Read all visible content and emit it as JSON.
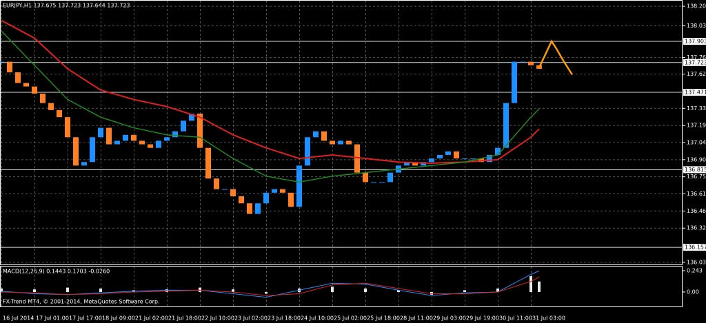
{
  "chart_data": [
    {
      "type": "candlestick",
      "title": "EURJPY,H1  137.675 137.723 137.644 137.723",
      "categories": [
        "16 Jul 2014",
        null,
        null,
        null,
        "17 Jul 01:00",
        null,
        null,
        null,
        "17 Jul 17:00",
        null,
        null,
        null,
        "18 Jul 09:00",
        null,
        null,
        null,
        "21 Jul 02:00",
        null,
        null,
        null,
        "21 Jul 18:00",
        null,
        null,
        null,
        "22 Jul 10:00",
        null,
        null,
        null,
        "23 Jul 02:00",
        null,
        null,
        null,
        "23 Jul 18:00",
        null,
        null,
        null,
        "24 Jul 10:00",
        null,
        null,
        null,
        "25 Jul 02:00",
        null,
        null,
        null,
        "25 Jul 18:00",
        null,
        null,
        null,
        "28 Jul 11:00",
        null,
        null,
        null,
        "29 Jul 03:00",
        null,
        null,
        null,
        "29 Jul 19:00",
        null,
        null,
        null,
        "30 Jul 11:00",
        null,
        null,
        null,
        "31 Jul 03:00",
        null,
        null,
        null,
        null,
        null
      ],
      "ylim": [
        136.006,
        138.253
      ],
      "yticks": [
        {
          "value": 138.2,
          "label": "138.200"
        },
        {
          "value": 138.035,
          "label": "138.035"
        },
        {
          "value": 137.765,
          "label": "137.765"
        },
        {
          "value": 137.625,
          "label": "137.625"
        },
        {
          "value": 137.335,
          "label": "137.335"
        },
        {
          "value": 137.19,
          "label": "137.190"
        },
        {
          "value": 137.045,
          "label": "137.045"
        },
        {
          "value": 136.9,
          "label": "136.900"
        },
        {
          "value": 136.755,
          "label": "136.755"
        },
        {
          "value": 136.61,
          "label": "136.610"
        },
        {
          "value": 136.465,
          "label": "136.465"
        },
        {
          "value": 136.32,
          "label": "136.320"
        },
        {
          "value": 136.03,
          "label": "136.030"
        }
      ],
      "levels": [
        {
          "value": 137.903,
          "label": "137.903"
        },
        {
          "value": 137.723,
          "label": "137.723"
        },
        {
          "value": 137.471,
          "label": "137.471"
        },
        {
          "value": 136.815,
          "label": "136.815"
        },
        {
          "value": 136.157,
          "label": "136.157"
        }
      ],
      "grid": true,
      "series": [
        {
          "style": "candles",
          "up_color": "#1e90ff",
          "down_color": "#ff7f27",
          "x": [
            0,
            1,
            2,
            3,
            4,
            5,
            6,
            7,
            8,
            9,
            10,
            11,
            12,
            13,
            14,
            15,
            16,
            17,
            18,
            19,
            20,
            21,
            22,
            23,
            24,
            25,
            26,
            27,
            28,
            29,
            30,
            31,
            32,
            33,
            34,
            35,
            36,
            37,
            38,
            39,
            40,
            41,
            42,
            43,
            44,
            45,
            46,
            47,
            48,
            49,
            50,
            51,
            52,
            53,
            54,
            55,
            56,
            57,
            58,
            59,
            60,
            61,
            62,
            63,
            64,
            65
          ],
          "values": [
            137.73,
            137.64,
            137.55,
            137.52,
            137.46,
            137.38,
            137.32,
            137.26,
            137.09,
            136.85,
            136.88,
            137.09,
            137.17,
            137.03,
            137.06,
            137.11,
            137.06,
            137.03,
            137.0,
            137.06,
            137.09,
            137.14,
            137.23,
            137.29,
            137.0,
            136.74,
            136.65,
            136.65,
            136.59,
            136.53,
            136.44,
            136.53,
            136.62,
            136.65,
            136.62,
            136.5,
            136.85,
            137.09,
            137.14,
            137.06,
            137.03,
            137.06,
            137.03,
            136.79,
            136.71,
            136.71,
            136.71,
            136.79,
            136.85,
            136.88,
            136.85,
            136.88,
            136.91,
            136.94,
            136.97,
            136.91,
            136.91,
            136.91,
            136.88,
            136.94,
            137.0,
            137.38,
            137.73,
            137.73,
            137.7,
            137.67
          ]
        },
        {
          "style": "line",
          "color": "#e02020",
          "width": 2,
          "x": [
            0,
            4,
            8,
            12,
            16,
            20,
            24,
            28,
            32,
            36,
            40,
            44,
            48,
            52,
            56,
            60,
            64,
            65
          ],
          "values": [
            138.08,
            137.93,
            137.67,
            137.49,
            137.41,
            137.35,
            137.26,
            137.11,
            137.0,
            136.91,
            136.94,
            136.91,
            136.88,
            136.87,
            136.88,
            136.9,
            137.09,
            137.16
          ]
        },
        {
          "style": "line",
          "color": "#1f8a1f",
          "width": 1.5,
          "x": [
            0,
            4,
            8,
            12,
            16,
            20,
            24,
            28,
            32,
            36,
            40,
            44,
            48,
            52,
            56,
            60,
            64,
            65
          ],
          "values": [
            137.99,
            137.7,
            137.41,
            137.26,
            137.17,
            137.11,
            137.09,
            136.91,
            136.76,
            136.71,
            136.76,
            136.79,
            136.82,
            136.85,
            136.88,
            136.94,
            137.26,
            137.33
          ]
        },
        {
          "style": "line",
          "color": "#ff9900",
          "width": 2.5,
          "x": [
            65,
            66.5,
            67,
            68,
            69
          ],
          "values": [
            137.68,
            137.903,
            137.85,
            137.73,
            137.62
          ]
        }
      ]
    },
    {
      "type": "macd",
      "title": "MACD(12,26,9) 0.1443 0.1703 -0.0260",
      "ylim": [
        -0.165,
        0.298
      ],
      "yticks": [
        0.243,
        {
          "value": 0,
          "label": "0.00"
        }
      ],
      "series": [
        {
          "style": "histogram",
          "color": "#e8e8e8",
          "x": [
            0,
            4,
            8,
            12,
            16,
            20,
            24,
            28,
            32,
            36,
            40,
            44,
            48,
            52,
            56,
            60,
            64,
            65
          ],
          "values": [
            0.04,
            0.03,
            0.05,
            0.04,
            0.02,
            0.03,
            0.05,
            0.03,
            -0.02,
            0.04,
            0.06,
            0.04,
            0.02,
            -0.03,
            0.02,
            0.04,
            0.18,
            0.12
          ]
        },
        {
          "style": "line",
          "color": "#1e90ff",
          "width": 1,
          "x": [
            0,
            4,
            8,
            12,
            16,
            20,
            24,
            28,
            32,
            36,
            40,
            44,
            48,
            52,
            56,
            60,
            64,
            65
          ],
          "values": [
            0.01,
            -0.02,
            -0.03,
            -0.01,
            0.01,
            0.02,
            0.02,
            -0.02,
            -0.06,
            0.02,
            0.1,
            0.09,
            0.02,
            -0.04,
            -0.01,
            0.0,
            0.2,
            0.24
          ]
        },
        {
          "style": "line",
          "color": "#e02020",
          "width": 1,
          "x": [
            0,
            4,
            8,
            12,
            16,
            20,
            24,
            28,
            32,
            36,
            40,
            44,
            48,
            52,
            56,
            60,
            64,
            65
          ],
          "values": [
            0.0,
            -0.01,
            -0.03,
            -0.02,
            0.0,
            0.01,
            0.02,
            0.0,
            -0.04,
            -0.02,
            0.08,
            0.1,
            0.04,
            -0.02,
            -0.02,
            0.0,
            0.12,
            0.17
          ]
        }
      ]
    }
  ],
  "copyright": "FX-Trend MT4, © 2001-2014, MetaQuotes Software Corp."
}
